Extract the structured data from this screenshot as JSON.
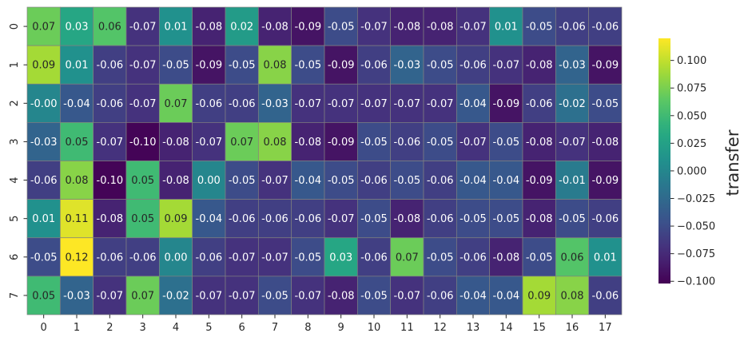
{
  "chart_data": {
    "type": "heatmap",
    "title": "",
    "xlabel": "",
    "ylabel": "",
    "colorbar_label": "transfer",
    "colormap": "viridis",
    "value_range": [
      -0.102,
      0.12
    ],
    "colorbar_ticks": [
      "0.100",
      "0.075",
      "0.050",
      "0.025",
      "0.000",
      "−0.025",
      "−0.050",
      "−0.075",
      "−0.100"
    ],
    "colorbar_tick_values": [
      0.1,
      0.075,
      0.05,
      0.025,
      0.0,
      -0.025,
      -0.05,
      -0.075,
      -0.1
    ],
    "x_tick_labels": [
      "0",
      "1",
      "2",
      "3",
      "4",
      "5",
      "6",
      "7",
      "8",
      "9",
      "10",
      "11",
      "12",
      "13",
      "14",
      "15",
      "16",
      "17"
    ],
    "y_tick_labels": [
      "0",
      "1",
      "2",
      "3",
      "4",
      "5",
      "6",
      "7"
    ],
    "cell_labels": [
      [
        "0.07",
        "0.03",
        "0.06",
        "-0.07",
        "0.01",
        "-0.08",
        "0.02",
        "-0.08",
        "-0.09",
        "-0.05",
        "-0.07",
        "-0.08",
        "-0.08",
        "-0.07",
        "0.01",
        "-0.05",
        "-0.06",
        "-0.06"
      ],
      [
        "0.09",
        "0.01",
        "-0.06",
        "-0.07",
        "-0.05",
        "-0.09",
        "-0.05",
        "0.08",
        "-0.05",
        "-0.09",
        "-0.06",
        "-0.03",
        "-0.05",
        "-0.06",
        "-0.07",
        "-0.08",
        "-0.03",
        "-0.09"
      ],
      [
        "-0.00",
        "-0.04",
        "-0.06",
        "-0.07",
        "0.07",
        "-0.06",
        "-0.06",
        "-0.03",
        "-0.07",
        "-0.07",
        "-0.07",
        "-0.07",
        "-0.07",
        "-0.04",
        "-0.09",
        "-0.06",
        "-0.02",
        "-0.05"
      ],
      [
        "-0.03",
        "0.05",
        "-0.07",
        "-0.10",
        "-0.08",
        "-0.07",
        "0.07",
        "0.08",
        "-0.08",
        "-0.09",
        "-0.05",
        "-0.06",
        "-0.05",
        "-0.07",
        "-0.05",
        "-0.08",
        "-0.07",
        "-0.08"
      ],
      [
        "-0.06",
        "0.08",
        "-0.10",
        "0.05",
        "-0.08",
        "0.00",
        "-0.05",
        "-0.07",
        "-0.04",
        "-0.05",
        "-0.06",
        "-0.05",
        "-0.06",
        "-0.04",
        "-0.04",
        "-0.09",
        "-0.01",
        "-0.09"
      ],
      [
        "0.01",
        "0.11",
        "-0.08",
        "0.05",
        "0.09",
        "-0.04",
        "-0.06",
        "-0.06",
        "-0.06",
        "-0.07",
        "-0.05",
        "-0.08",
        "-0.06",
        "-0.05",
        "-0.05",
        "-0.08",
        "-0.05",
        "-0.06"
      ],
      [
        "-0.05",
        "0.12",
        "-0.06",
        "-0.06",
        "0.00",
        "-0.06",
        "-0.07",
        "-0.07",
        "-0.05",
        "0.03",
        "-0.06",
        "0.07",
        "-0.05",
        "-0.06",
        "-0.08",
        "-0.05",
        "0.06",
        "0.01"
      ],
      [
        "0.05",
        "-0.03",
        "-0.07",
        "0.07",
        "-0.02",
        "-0.07",
        "-0.07",
        "-0.05",
        "-0.07",
        "-0.08",
        "-0.05",
        "-0.07",
        "-0.06",
        "-0.04",
        "-0.04",
        "0.09",
        "0.08",
        "-0.06"
      ]
    ],
    "values": [
      [
        0.07,
        0.03,
        0.06,
        -0.07,
        0.01,
        -0.08,
        0.02,
        -0.08,
        -0.09,
        -0.05,
        -0.07,
        -0.08,
        -0.08,
        -0.07,
        0.01,
        -0.05,
        -0.06,
        -0.06
      ],
      [
        0.09,
        0.01,
        -0.06,
        -0.07,
        -0.05,
        -0.09,
        -0.05,
        0.08,
        -0.05,
        -0.09,
        -0.06,
        -0.03,
        -0.05,
        -0.06,
        -0.07,
        -0.08,
        -0.03,
        -0.09
      ],
      [
        -0.0,
        -0.04,
        -0.06,
        -0.07,
        0.07,
        -0.06,
        -0.06,
        -0.03,
        -0.07,
        -0.07,
        -0.07,
        -0.07,
        -0.07,
        -0.04,
        -0.09,
        -0.06,
        -0.02,
        -0.05
      ],
      [
        -0.03,
        0.05,
        -0.07,
        -0.1,
        -0.08,
        -0.07,
        0.07,
        0.08,
        -0.08,
        -0.09,
        -0.05,
        -0.06,
        -0.05,
        -0.07,
        -0.05,
        -0.08,
        -0.07,
        -0.08
      ],
      [
        -0.06,
        0.08,
        -0.1,
        0.05,
        -0.08,
        0.0,
        -0.05,
        -0.07,
        -0.04,
        -0.05,
        -0.06,
        -0.05,
        -0.06,
        -0.04,
        -0.04,
        -0.09,
        -0.01,
        -0.09
      ],
      [
        0.01,
        0.11,
        -0.08,
        0.05,
        0.09,
        -0.04,
        -0.06,
        -0.06,
        -0.06,
        -0.07,
        -0.05,
        -0.08,
        -0.06,
        -0.05,
        -0.05,
        -0.08,
        -0.05,
        -0.06
      ],
      [
        -0.05,
        0.12,
        -0.06,
        -0.06,
        0.0,
        -0.06,
        -0.07,
        -0.07,
        -0.05,
        0.03,
        -0.06,
        0.07,
        -0.05,
        -0.06,
        -0.08,
        -0.05,
        0.06,
        0.01
      ],
      [
        0.05,
        -0.03,
        -0.07,
        0.07,
        -0.02,
        -0.07,
        -0.07,
        -0.05,
        -0.07,
        -0.08,
        -0.05,
        -0.07,
        -0.06,
        -0.04,
        -0.04,
        0.09,
        0.08,
        -0.06
      ]
    ],
    "grid_line_color": "#808080",
    "annotation_dark_text": "#262626",
    "annotation_light_text": "#ffffff"
  }
}
